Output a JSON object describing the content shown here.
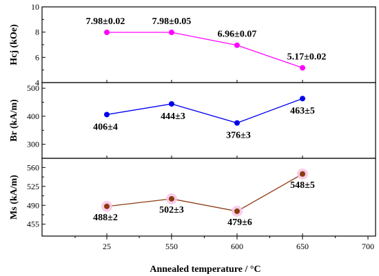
{
  "chart_data": {
    "type": "line",
    "xlabel": "Annealed temperature / °C",
    "x_ticks": [
      "25",
      "550",
      "600",
      "650",
      "700"
    ],
    "categories": [
      "25",
      "550",
      "600",
      "650"
    ],
    "grid": false,
    "panels": [
      {
        "ylabel": "Hcj (kOe)",
        "ylim": [
          4,
          10
        ],
        "yticks": [
          "4",
          "6",
          "8",
          "10"
        ],
        "color": "#ff00ff",
        "values": [
          7.98,
          7.98,
          6.96,
          5.17
        ],
        "labels": [
          "7.98±0.02",
          "7.98±0.05",
          "6.96±0.07",
          "5.17±0.02"
        ]
      },
      {
        "ylabel": "Br (kA/m)",
        "ylim": [
          250,
          520
        ],
        "yticks": [
          "300",
          "400",
          "500"
        ],
        "color": "#0000ee",
        "values": [
          406,
          444,
          376,
          463
        ],
        "labels": [
          "406±4",
          "444±3",
          "376±3",
          "463±5"
        ]
      },
      {
        "ylabel": "Ms (kA/m)",
        "ylim": [
          433,
          577
        ],
        "yticks": [
          "455",
          "490",
          "525",
          "560"
        ],
        "color": "#8b3a0f",
        "halo": "#f7c6e6",
        "values": [
          488,
          502,
          479,
          548
        ],
        "labels": [
          "488±2",
          "502±3",
          "479±6",
          "548±5"
        ]
      }
    ]
  }
}
